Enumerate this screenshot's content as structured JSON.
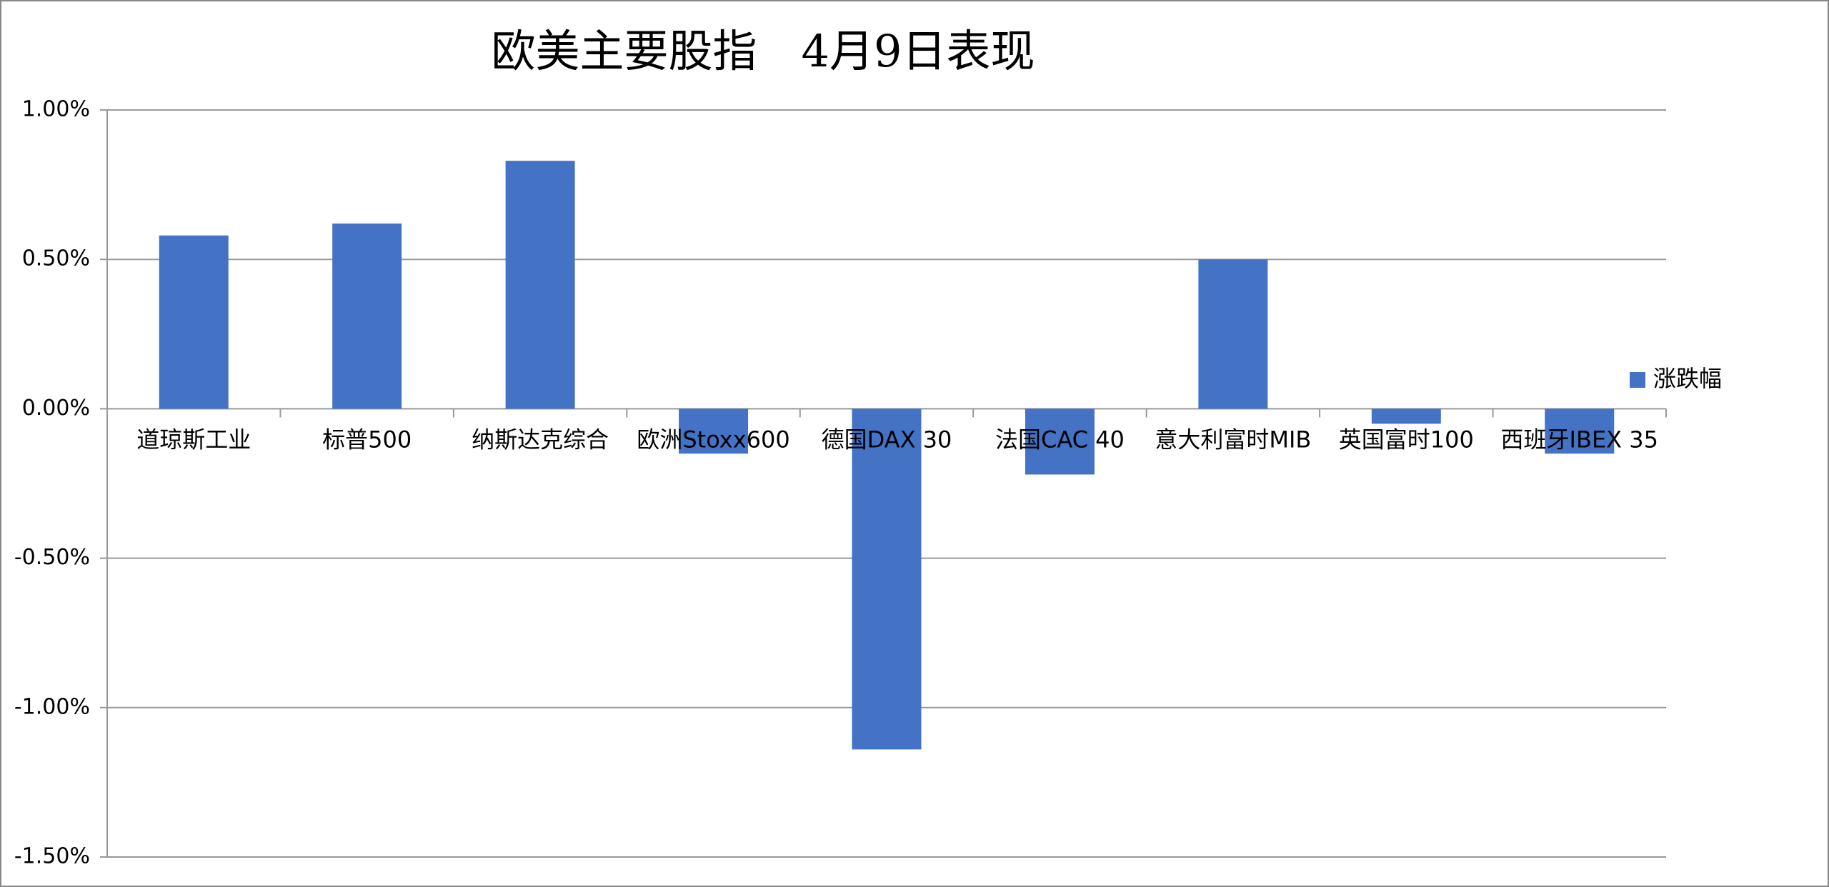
{
  "chart_data": {
    "type": "bar",
    "title": "欧美主要股指　4月9日表现",
    "categories": [
      "道琼斯工业",
      "标普500",
      "纳斯达克综合",
      "欧洲Stoxx600",
      "德国DAX 30",
      "法国CAC 40",
      "意大利富时MIB",
      "英国富时100",
      "西班牙IBEX 35"
    ],
    "series": [
      {
        "name": "涨跌幅",
        "color": "#4472c4",
        "values": [
          0.58,
          0.62,
          0.83,
          -0.15,
          -1.14,
          -0.22,
          0.5,
          -0.05,
          -0.15
        ]
      }
    ],
    "ylim": [
      -1.5,
      1.0
    ],
    "yticks": [
      {
        "value": -1.5,
        "label": "-1.50%"
      },
      {
        "value": -1.0,
        "label": "-1.00%"
      },
      {
        "value": -0.5,
        "label": "-0.50%"
      },
      {
        "value": 0,
        "label": "0.00%"
      },
      {
        "value": 0.5,
        "label": "0.50%"
      },
      {
        "value": 1.0,
        "label": "1.00%"
      }
    ],
    "grid": true,
    "legend": "right"
  }
}
